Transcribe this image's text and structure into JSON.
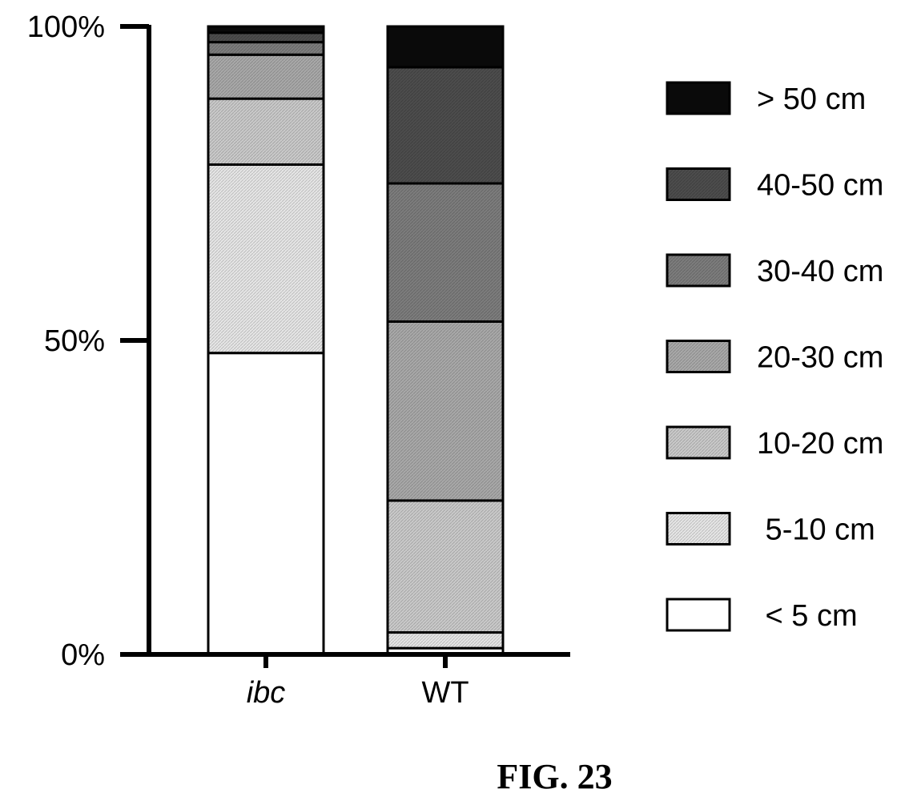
{
  "chart_data": {
    "type": "bar",
    "stacked": true,
    "categories": [
      "ibc",
      "WT"
    ],
    "category_styles": [
      "italic",
      "normal"
    ],
    "yticks": [
      {
        "value": 0,
        "label": "0%"
      },
      {
        "value": 50,
        "label": "50%"
      },
      {
        "value": 100,
        "label": "100%"
      }
    ],
    "ylim": [
      0,
      100
    ],
    "legend_position": "right",
    "series": [
      {
        "name": "< 5 cm",
        "legend_label": " < 5 cm",
        "color": "#ffffff",
        "values": [
          48,
          1
        ]
      },
      {
        "name": "5-10 cm",
        "legend_label": " 5-10 cm",
        "color": "#e6e6e6",
        "values": [
          30,
          2.5
        ]
      },
      {
        "name": "10-20 cm",
        "legend_label": "10-20 cm",
        "color": "#cacaca",
        "values": [
          10.5,
          21
        ]
      },
      {
        "name": "20-30 cm",
        "legend_label": "20-30 cm",
        "color": "#a9a9a9",
        "values": [
          7,
          28.5
        ]
      },
      {
        "name": "30-40 cm",
        "legend_label": "30-40 cm",
        "color": "#7d7d7d",
        "values": [
          2,
          22
        ]
      },
      {
        "name": "40-50 cm",
        "legend_label": "40-50 cm",
        "color": "#4d4d4d",
        "values": [
          1.5,
          18.5
        ]
      },
      {
        "name": "> 50 cm",
        "legend_label": "> 50 cm",
        "color": "#0a0a0a",
        "values": [
          1,
          6.5
        ]
      }
    ]
  },
  "figure_label": "FIG. 23"
}
